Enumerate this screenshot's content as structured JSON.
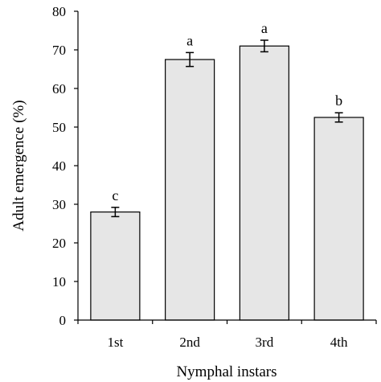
{
  "chart_data": {
    "type": "bar",
    "categories": [
      "1st",
      "2nd",
      "3rd",
      "4th"
    ],
    "values": [
      28,
      67.5,
      71,
      52.5
    ],
    "errors": [
      1.2,
      1.8,
      1.5,
      1.2
    ],
    "significance": [
      "c",
      "a",
      "a",
      "b"
    ],
    "xlabel": "Nymphal instars",
    "ylabel": "Adult emergence (%)",
    "ylim": [
      0,
      80
    ],
    "yticks": [
      0,
      10,
      20,
      30,
      40,
      50,
      60,
      70,
      80
    ],
    "grid": false,
    "bar_color": "#e6e6e6",
    "bar_edge_color": "#000000"
  }
}
